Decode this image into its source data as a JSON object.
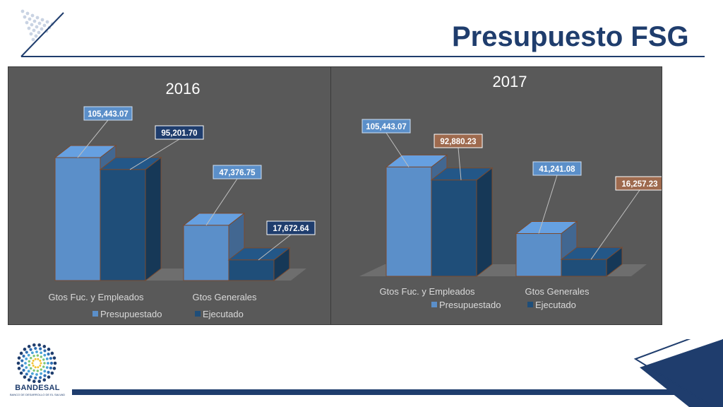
{
  "slide": {
    "title": "Presupuesto FSG",
    "logo_name": "BANDESAL",
    "logo_subtitle": "BANCO DE DESARROLLO DE EL SALVADOR"
  },
  "colors": {
    "navy": "#1f3d6d",
    "panel": "#595959",
    "presupuestado": "#5b8fc9",
    "ejecutado": "#1f4e79",
    "label_brown": "#9e6a4e"
  },
  "chart_data": [
    {
      "type": "bar",
      "title": "2016",
      "categories": [
        "Gtos Fuc. y Empleados",
        "Gtos Generales"
      ],
      "series": [
        {
          "name": "Presupuestado",
          "values": [
            105443.07,
            47376.75
          ],
          "labels": [
            "105,443.07",
            "47,376.75"
          ]
        },
        {
          "name": "Ejecutado",
          "values": [
            95201.7,
            17672.64
          ],
          "labels": [
            "95,201.70",
            "17,672.64"
          ]
        }
      ],
      "legend": "bottom",
      "grid": false,
      "ylim": [
        0,
        120000
      ]
    },
    {
      "type": "bar",
      "title": "2017",
      "categories": [
        "Gtos Fuc. y Empleados",
        "Gtos Generales"
      ],
      "series": [
        {
          "name": "Presupuestado",
          "values": [
            105443.07,
            41241.08
          ],
          "labels": [
            "105,443.07",
            "41,241.08"
          ]
        },
        {
          "name": "Ejecutado",
          "values": [
            92880.23,
            16257.23
          ],
          "labels": [
            "92,880.23",
            "16,257.23"
          ]
        }
      ],
      "legend": "bottom",
      "grid": false,
      "ylim": [
        0,
        120000
      ]
    }
  ]
}
